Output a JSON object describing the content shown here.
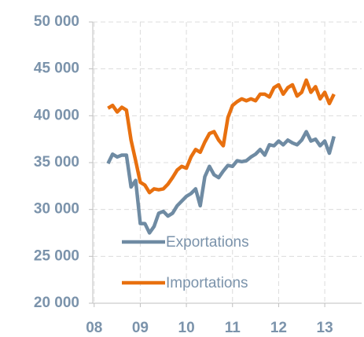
{
  "chart_data": {
    "type": "line",
    "x": [
      8.3,
      8.4,
      8.5,
      8.6,
      8.7,
      8.8,
      8.9,
      9.0,
      9.1,
      9.2,
      9.3,
      9.4,
      9.5,
      9.6,
      9.7,
      9.8,
      9.9,
      10.0,
      10.1,
      10.2,
      10.3,
      10.4,
      10.5,
      10.6,
      10.7,
      10.8,
      10.9,
      11.0,
      11.1,
      11.2,
      11.3,
      11.4,
      11.5,
      11.6,
      11.7,
      11.8,
      11.9,
      12.0,
      12.1,
      12.2,
      12.3,
      12.4,
      12.5,
      12.6,
      12.7,
      12.8,
      12.9,
      13.0,
      13.1,
      13.2
    ],
    "series": [
      {
        "name": "Exportations",
        "color": "#6f8ba3",
        "values": [
          34900,
          35900,
          35600,
          35800,
          35800,
          32400,
          33100,
          28500,
          28500,
          27500,
          28200,
          29600,
          29800,
          29300,
          29600,
          30400,
          30900,
          31400,
          31700,
          32200,
          30400,
          33500,
          34600,
          33700,
          33400,
          34100,
          34700,
          34600,
          35200,
          35100,
          35200,
          35600,
          35900,
          36400,
          35800,
          36900,
          36800,
          37300,
          36900,
          37400,
          37100,
          36900,
          37400,
          38300,
          37300,
          37500,
          36800,
          37300,
          36000,
          37800
        ]
      },
      {
        "name": "Importations",
        "color": "#e8700f",
        "values": [
          40800,
          41100,
          40400,
          40900,
          40600,
          37400,
          35200,
          32900,
          32600,
          31800,
          32200,
          32100,
          32200,
          32700,
          33400,
          34200,
          34600,
          34400,
          35600,
          36400,
          36100,
          37200,
          38100,
          38300,
          37400,
          36800,
          39800,
          41100,
          41500,
          41800,
          41600,
          41800,
          41600,
          42300,
          42300,
          42000,
          43000,
          43300,
          42300,
          43000,
          43300,
          42100,
          42500,
          43800,
          42500,
          43100,
          41800,
          42500,
          41300,
          42300
        ]
      }
    ],
    "xlim": [
      7.97,
      13.8
    ],
    "xticks": [
      {
        "value": 8,
        "label": "08"
      },
      {
        "value": 9,
        "label": "09"
      },
      {
        "value": 10,
        "label": "10"
      },
      {
        "value": 11,
        "label": "11"
      },
      {
        "value": 12,
        "label": "12"
      },
      {
        "value": 13,
        "label": "13"
      }
    ],
    "ylim": [
      20000,
      50000
    ],
    "yticks": [
      {
        "value": 20000,
        "label": "20 000"
      },
      {
        "value": 25000,
        "label": "25 000"
      },
      {
        "value": 30000,
        "label": "30 000"
      },
      {
        "value": 35000,
        "label": "35 000"
      },
      {
        "value": 40000,
        "label": "40 000"
      },
      {
        "value": 45000,
        "label": "45 000"
      },
      {
        "value": 50000,
        "label": "50 000"
      }
    ],
    "grid": true,
    "legend": "lower left"
  }
}
